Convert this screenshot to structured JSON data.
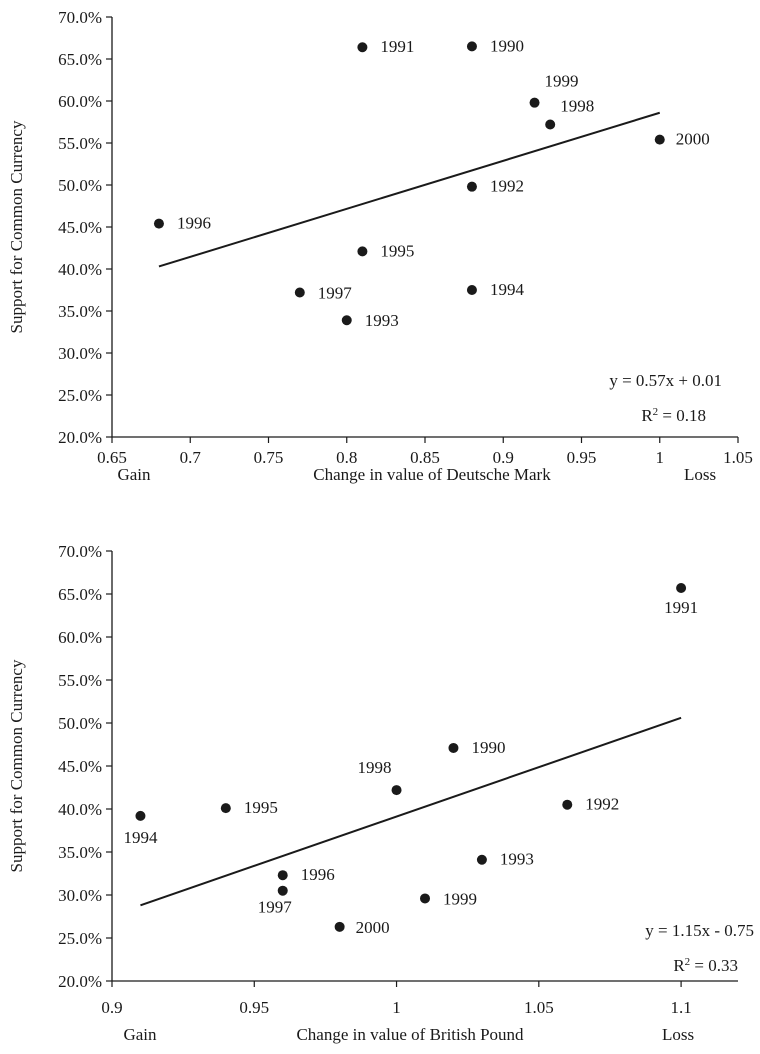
{
  "chart_data": [
    {
      "type": "scatter",
      "ylabel": "Support for Common Currency",
      "xlabel": "Change in value of Deutsche Mark",
      "x_left_label": "Gain",
      "x_right_label": "Loss",
      "xlim": [
        0.65,
        1.05
      ],
      "ylim": [
        20.0,
        70.0
      ],
      "x_ticks": [
        "0.65",
        "0.7",
        "0.75",
        "0.8",
        "0.85",
        "0.9",
        "0.95",
        "1",
        "1.05"
      ],
      "y_ticks": [
        "20.0%",
        "25.0%",
        "30.0%",
        "35.0%",
        "40.0%",
        "45.0%",
        "50.0%",
        "55.0%",
        "60.0%",
        "65.0%",
        "70.0%"
      ],
      "points": [
        {
          "label": "1990",
          "x": 0.88,
          "y": 66.5
        },
        {
          "label": "1991",
          "x": 0.81,
          "y": 66.4
        },
        {
          "label": "1992",
          "x": 0.88,
          "y": 49.8
        },
        {
          "label": "1993",
          "x": 0.8,
          "y": 33.9
        },
        {
          "label": "1994",
          "x": 0.88,
          "y": 37.5
        },
        {
          "label": "1995",
          "x": 0.81,
          "y": 42.1
        },
        {
          "label": "1996",
          "x": 0.68,
          "y": 45.4
        },
        {
          "label": "1997",
          "x": 0.77,
          "y": 37.2
        },
        {
          "label": "1998",
          "x": 0.93,
          "y": 57.2
        },
        {
          "label": "1999",
          "x": 0.92,
          "y": 59.8
        },
        {
          "label": "2000",
          "x": 1.0,
          "y": 55.4
        }
      ],
      "trendline": {
        "x": [
          0.68,
          1.0
        ],
        "y": [
          40.3,
          58.6
        ]
      },
      "equation": "y = 0.57x + 0.01",
      "r2_prefix": "R",
      "r2_exp": "2",
      "r2_value": " = 0.18"
    },
    {
      "type": "scatter",
      "ylabel": "Support for Common Currency",
      "xlabel": "Change in value of British Pound",
      "x_left_label": "Gain",
      "x_right_label": "Loss",
      "xlim": [
        0.9,
        1.12
      ],
      "ylim": [
        20.0,
        70.0
      ],
      "x_ticks": [
        "0.9",
        "0.95",
        "1",
        "1.05",
        "1.1"
      ],
      "x_tick_values": [
        0.9,
        0.95,
        1.0,
        1.05,
        1.1
      ],
      "y_ticks": [
        "20.0%",
        "25.0%",
        "30.0%",
        "35.0%",
        "40.0%",
        "45.0%",
        "50.0%",
        "55.0%",
        "60.0%",
        "65.0%",
        "70.0%"
      ],
      "points": [
        {
          "label": "1990",
          "x": 1.02,
          "y": 47.1
        },
        {
          "label": "1991",
          "x": 1.1,
          "y": 65.7
        },
        {
          "label": "1992",
          "x": 1.06,
          "y": 40.5
        },
        {
          "label": "1993",
          "x": 1.03,
          "y": 34.1
        },
        {
          "label": "1994",
          "x": 0.91,
          "y": 39.2
        },
        {
          "label": "1995",
          "x": 0.94,
          "y": 40.1
        },
        {
          "label": "1996",
          "x": 0.96,
          "y": 32.3
        },
        {
          "label": "1997",
          "x": 0.96,
          "y": 30.5
        },
        {
          "label": "1998",
          "x": 1.0,
          "y": 42.2
        },
        {
          "label": "1999",
          "x": 1.01,
          "y": 29.6
        },
        {
          "label": "2000",
          "x": 0.98,
          "y": 26.3
        }
      ],
      "trendline": {
        "x": [
          0.91,
          1.1
        ],
        "y": [
          28.8,
          50.6
        ]
      },
      "equation": "y = 1.15x - 0.75",
      "r2_prefix": "R",
      "r2_exp": "2",
      "r2_value": " = 0.33"
    }
  ]
}
